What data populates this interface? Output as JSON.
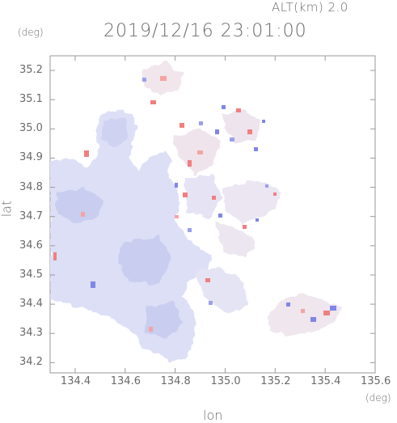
{
  "header": {
    "altitude_label": "ALT(km)  2.0",
    "timestamp": "2019/12/16  23:01:00"
  },
  "axes": {
    "ylabel": "lat",
    "xlabel": "lon",
    "yunit": "(deg)",
    "xunit": "(deg)",
    "lat_ticks": [
      "35.2",
      "35.1",
      "35.0",
      "34.9",
      "34.8",
      "34.7",
      "34.6",
      "34.5",
      "34.4",
      "34.3",
      "34.2"
    ],
    "lon_ticks": [
      "134.4",
      "134.6",
      "134.8",
      "135.0",
      "135.2",
      "135.4",
      "135.6"
    ],
    "lat_range": [
      34.165,
      35.25
    ],
    "lon_range": [
      134.3,
      135.6
    ]
  },
  "colors": {
    "frame": "#9a9a9a",
    "land_echo": "#dcdff5",
    "land_echo_dark": "#c9cdef",
    "approaching": "#7f86e6",
    "receding": "#f07f7f",
    "neutral": "#f3eaf0"
  }
}
